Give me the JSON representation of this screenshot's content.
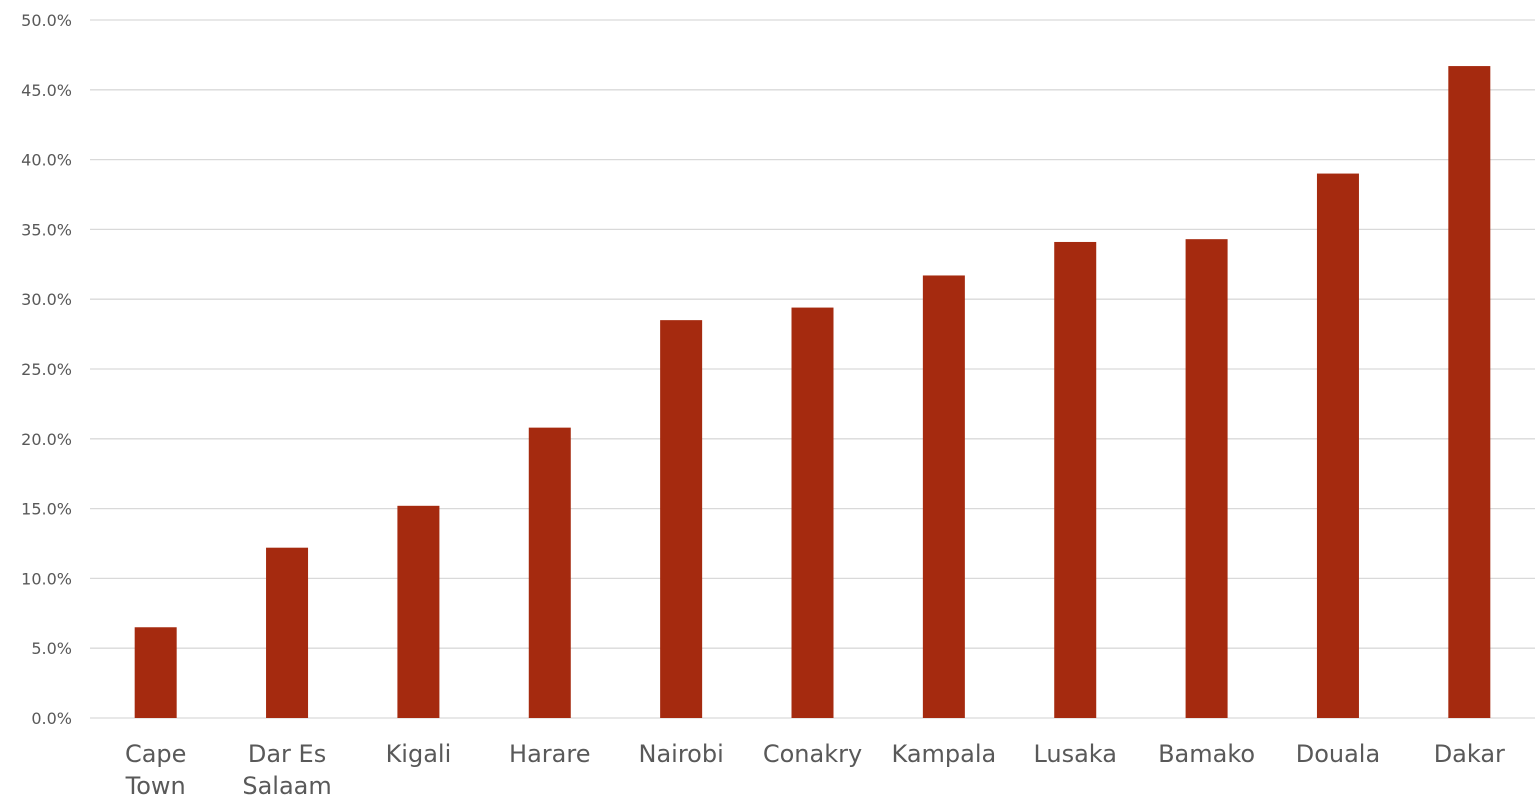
{
  "chart_data": {
    "type": "bar",
    "title": "",
    "xlabel": "",
    "ylabel": "",
    "categories": [
      [
        "Cape",
        "Town"
      ],
      [
        "Dar Es",
        "Salaam"
      ],
      [
        "Kigali"
      ],
      [
        "Harare"
      ],
      [
        "Nairobi"
      ],
      [
        "Conakry"
      ],
      [
        "Kampala"
      ],
      [
        "Lusaka"
      ],
      [
        "Bamako"
      ],
      [
        "Douala"
      ],
      [
        "Dakar"
      ]
    ],
    "values": [
      6.5,
      12.2,
      15.2,
      20.8,
      28.5,
      29.4,
      31.7,
      34.1,
      34.3,
      39.0,
      46.7
    ],
    "ylim": [
      0,
      50
    ],
    "yticks": [
      "0.0%",
      "5.0%",
      "10.0%",
      "15.0%",
      "20.0%",
      "25.0%",
      "30.0%",
      "35.0%",
      "40.0%",
      "45.0%",
      "50.0%"
    ],
    "grid": true,
    "legend": "none",
    "bar_color": "#A52A0F",
    "grid_color": "#D9D9D9"
  }
}
